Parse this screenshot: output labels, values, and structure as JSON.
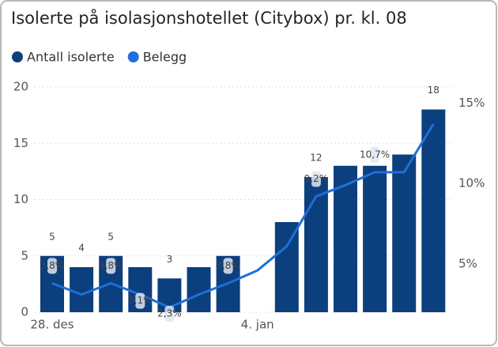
{
  "chart_data": {
    "type": "combo",
    "title": "Isolerte på isolasjonshotellet (Citybox) pr. kl. 08",
    "categories": [
      "28. des",
      null,
      null,
      null,
      null,
      null,
      null,
      "4. jan",
      null,
      null,
      null,
      null,
      null,
      null
    ],
    "series": [
      {
        "name": "Antall isolerte",
        "type": "bar",
        "color": "#0b3f7e",
        "values": [
          5,
          4,
          5,
          4,
          3,
          4,
          5,
          null,
          8,
          12,
          13,
          13,
          14,
          18
        ],
        "value_labels": [
          "5",
          "4",
          "5",
          null,
          "3",
          null,
          null,
          null,
          null,
          "12",
          null,
          null,
          null,
          "18"
        ]
      },
      {
        "name": "Belegg",
        "type": "line",
        "axis": "y2",
        "color": "#1f6fd8",
        "values": [
          3.8,
          3.1,
          3.8,
          3.1,
          2.3,
          3.1,
          3.8,
          4.6,
          6.1,
          9.2,
          9.9,
          10.7,
          10.7,
          13.7
        ],
        "value_labels": [
          "3,8%",
          null,
          "3,8%",
          "3,1%",
          "2,3%",
          null,
          "3,8%",
          null,
          null,
          "9,2%",
          null,
          "10,7%",
          null,
          null
        ]
      }
    ],
    "ylim": [
      0,
      20
    ],
    "yticks": [
      0,
      5,
      10,
      15,
      20
    ],
    "y2lim": [
      2,
      16
    ],
    "y2ticks": [
      {
        "value": 5,
        "label": "5%"
      },
      {
        "value": 10,
        "label": "10%"
      },
      {
        "value": 15,
        "label": "15%"
      }
    ],
    "grid": true,
    "legend": "top-left"
  }
}
